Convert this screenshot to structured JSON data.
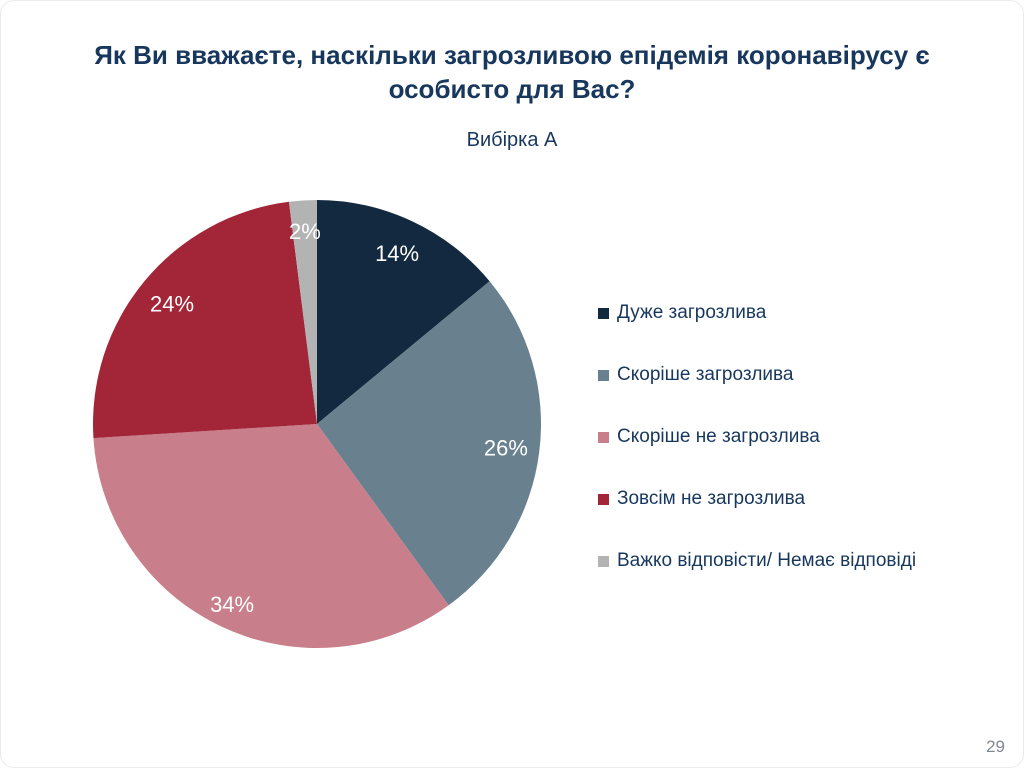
{
  "slide": {
    "title": "Як Ви вважаєте, наскільки загрозливою епідемія коронавірусу є особисто для Вас?",
    "subtitle": "Вибірка А",
    "page_number": "29"
  },
  "colors": {
    "title_text": "#17375d",
    "legend_text": "#17375d",
    "slice_label_text": "#ffffff",
    "page_number_text": "#808892"
  },
  "chart_data": {
    "type": "pie",
    "title": "Вибірка А",
    "categories": [
      "Дуже загрозлива",
      "Скоріше загрозлива",
      "Скоріше не загрозлива",
      "Зовсім не загрозлива",
      "Важко відповісти/ Немає відповіді"
    ],
    "values": [
      14,
      26,
      34,
      24,
      2
    ],
    "data_labels": [
      "14%",
      "26%",
      "34%",
      "24%",
      "2%"
    ],
    "colors": [
      "#12293f",
      "#69808f",
      "#c97f8b",
      "#a32638",
      "#b3b3b3"
    ],
    "start_angle_deg": 0,
    "direction": "clockwise",
    "legend_position": "right",
    "grid": false
  }
}
